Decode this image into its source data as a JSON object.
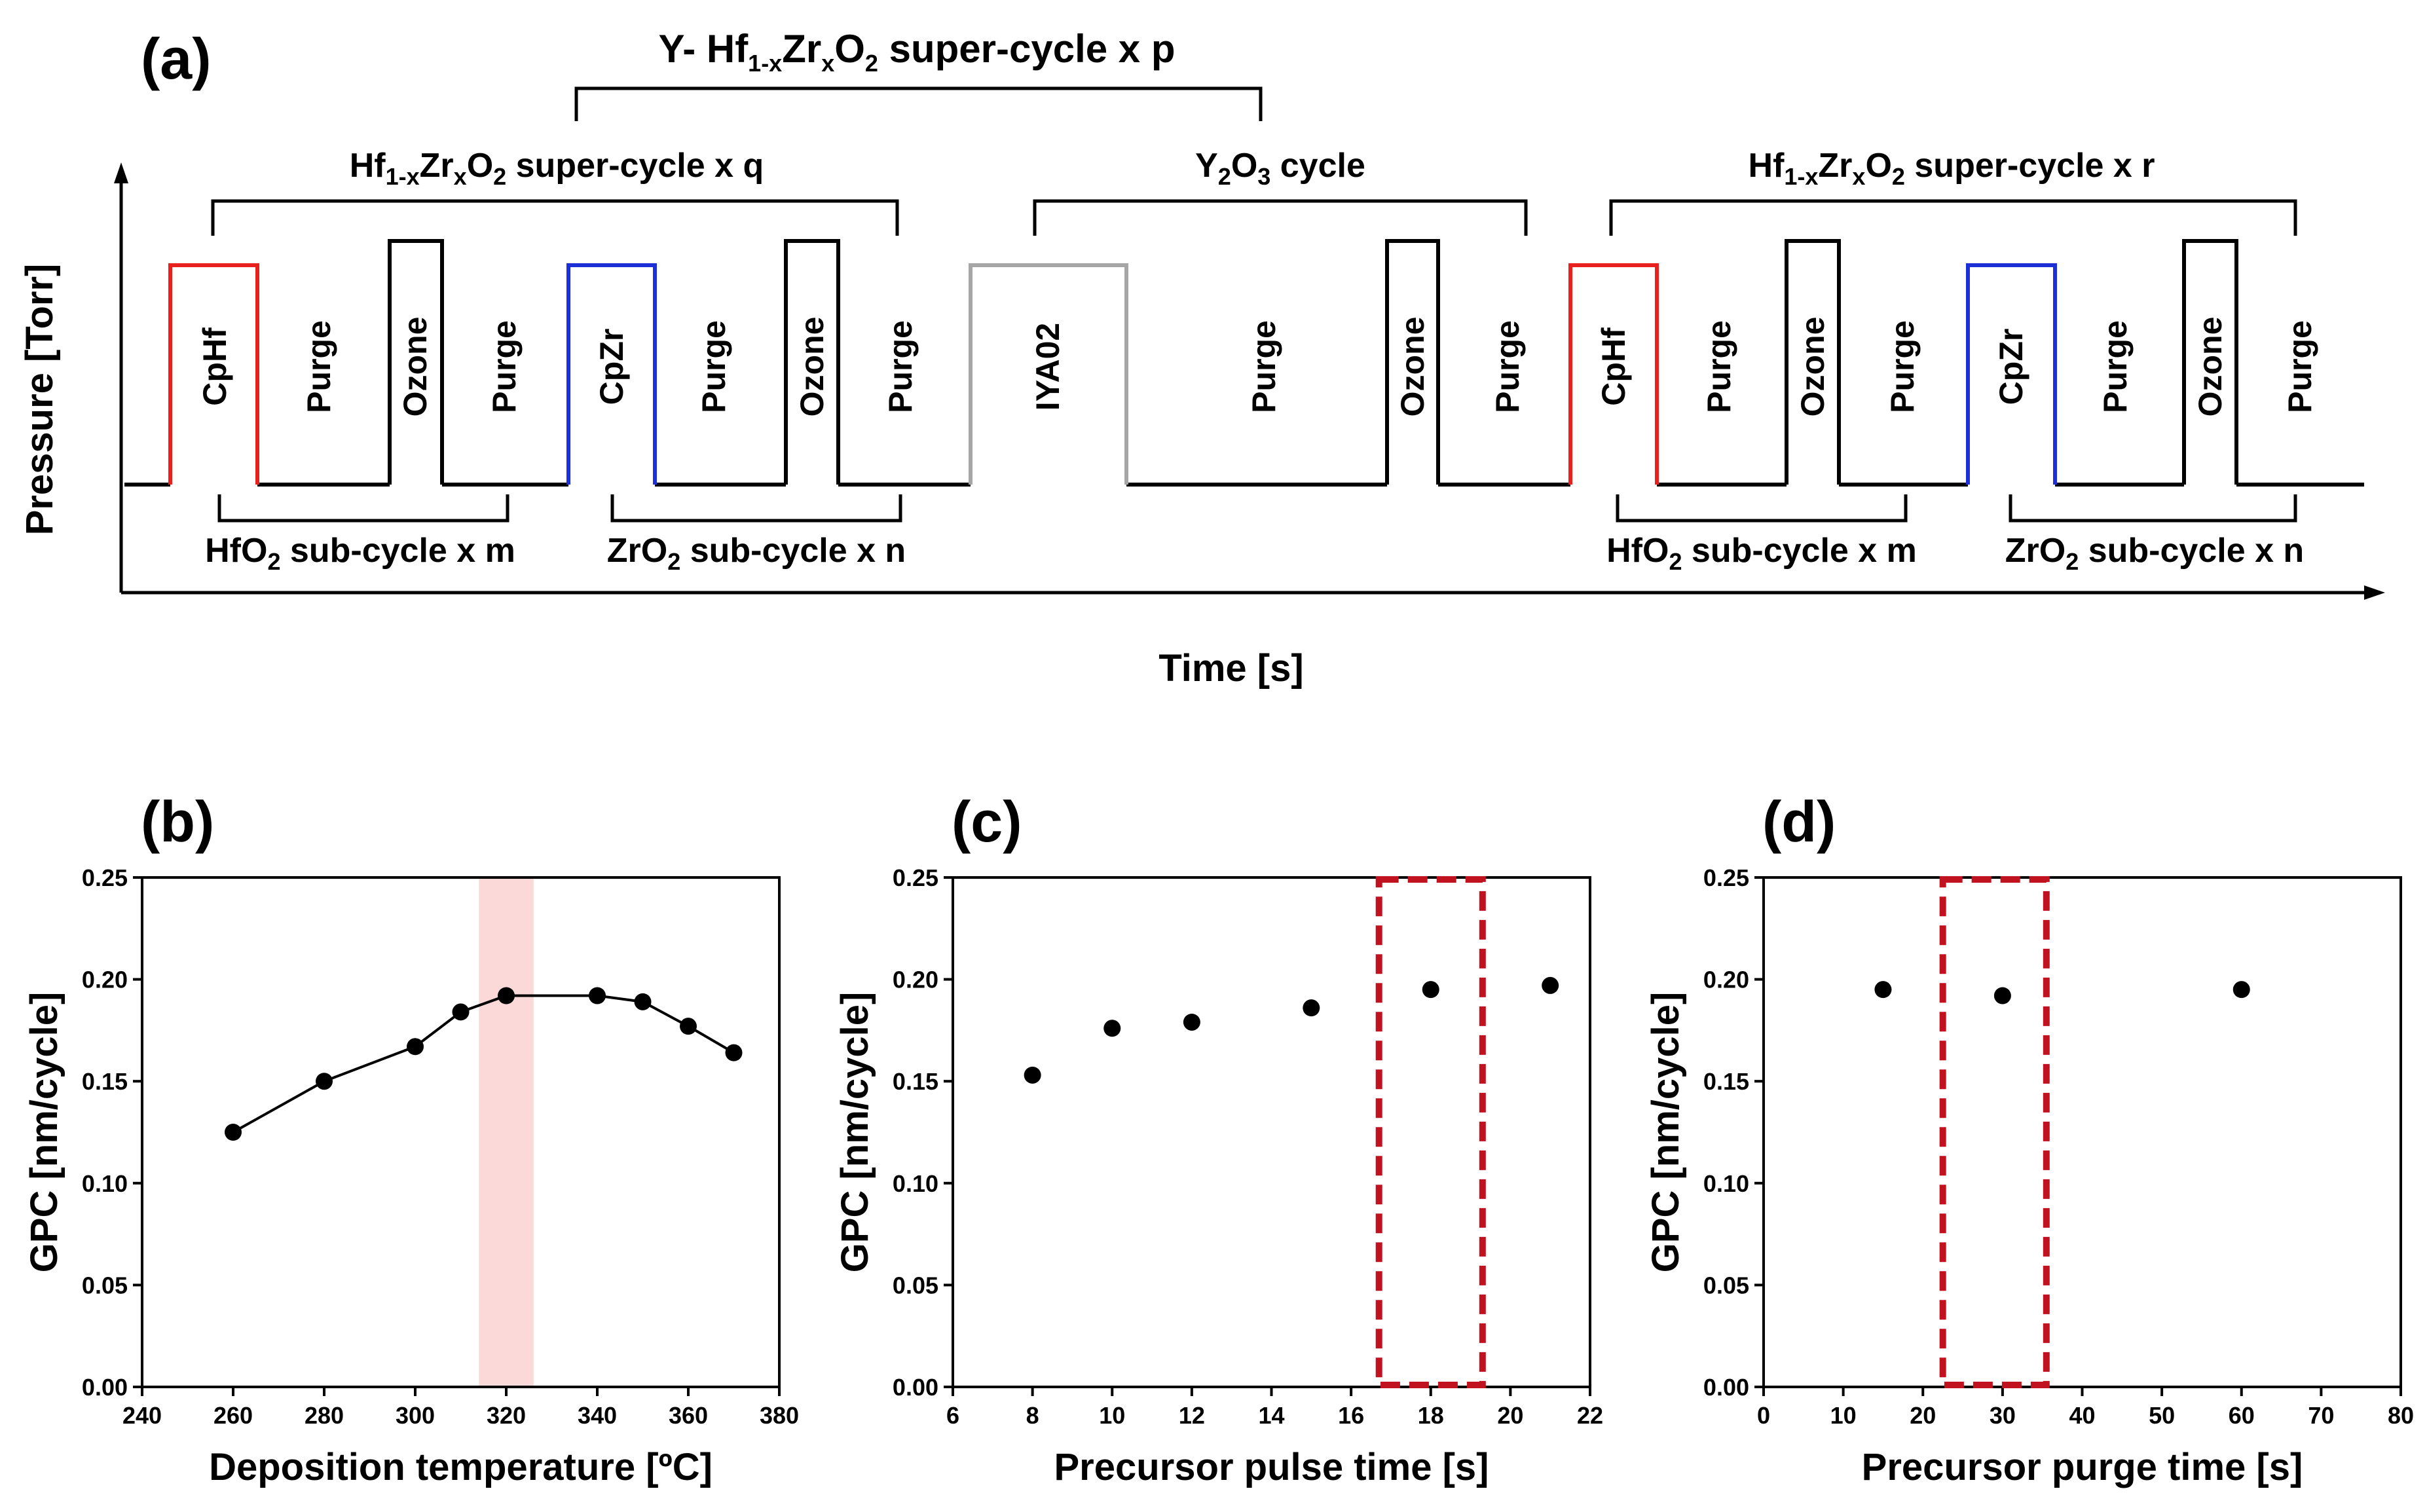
{
  "panel_a": {
    "label": "(a)",
    "xlabel": "Time [s]",
    "ylabel": "Pressure [Torr]",
    "top_bracket": {
      "prefix": "Y- Hf",
      "sub1": "1-x",
      "mid1": "Zr",
      "sub2": "x",
      "mid2": "O",
      "sub3": "2",
      "suffix": " super-cycle x p"
    },
    "brackets_above": [
      {
        "prefix": "Hf",
        "sub1": "1-x",
        "mid1": "Zr",
        "sub2": "x",
        "mid2": "O",
        "sub3": "2",
        "suffix": " super-cycle x q"
      },
      {
        "prefix": "Y",
        "sub1": "2",
        "mid1": "O",
        "sub2": "3",
        "mid2": " cycle",
        "sub3": "",
        "suffix": ""
      },
      {
        "prefix": "Hf",
        "sub1": "1-x",
        "mid1": "Zr",
        "sub2": "x",
        "mid2": "O",
        "sub3": "2",
        "suffix": " super-cycle x r"
      }
    ],
    "brackets_below": [
      {
        "prefix": "HfO",
        "sub": "2",
        "suffix": " sub-cycle x m"
      },
      {
        "prefix": "ZrO",
        "sub": "2",
        "suffix": " sub-cycle x n"
      },
      {
        "prefix": "HfO",
        "sub": "2",
        "suffix": " sub-cycle x m"
      },
      {
        "prefix": "ZrO",
        "sub": "2",
        "suffix": " sub-cycle x n"
      }
    ],
    "pulse_labels": [
      "CpHf",
      "Purge",
      "Ozone",
      "Purge",
      "CpZr",
      "Purge",
      "Ozone",
      "Purge",
      "IYA02",
      "Purge",
      "Ozone",
      "Purge",
      "CpHf",
      "Purge",
      "Ozone",
      "Purge",
      "CpZr",
      "Purge",
      "Ozone",
      "Purge"
    ],
    "pulse_colors": {
      "CpHf": "#e8211f",
      "CpZr": "#1d2fd6",
      "IYA02": "#a6a6a6",
      "Ozone": "#000000"
    }
  },
  "chart_data": [
    {
      "panel": "(b)",
      "type": "line",
      "xlabel": "Deposition temperature [ºC]",
      "ylabel": "GPC [nm/cycle]",
      "xlim": [
        240,
        380
      ],
      "ylim": [
        0.0,
        0.25
      ],
      "xticks": [
        "240",
        "260",
        "280",
        "300",
        "320",
        "340",
        "360",
        "380"
      ],
      "yticks": [
        "0.00",
        "0.05",
        "0.10",
        "0.15",
        "0.20",
        "0.25"
      ],
      "x": [
        260,
        280,
        300,
        310,
        320,
        340,
        350,
        360,
        370
      ],
      "y": [
        0.125,
        0.15,
        0.167,
        0.184,
        0.192,
        0.192,
        0.189,
        0.177,
        0.164
      ],
      "highlight_x_range": [
        314,
        326
      ],
      "highlight_color": "#fcd9d9"
    },
    {
      "panel": "(c)",
      "type": "scatter",
      "xlabel": "Precursor pulse time [s]",
      "ylabel": "GPC [nm/cycle]",
      "xlim": [
        6,
        22
      ],
      "ylim": [
        0.0,
        0.25
      ],
      "xticks": [
        "6",
        "8",
        "10",
        "12",
        "14",
        "16",
        "18",
        "20",
        "22"
      ],
      "yticks": [
        "0.00",
        "0.05",
        "0.10",
        "0.15",
        "0.20",
        "0.25"
      ],
      "x": [
        8,
        10,
        12,
        15,
        18,
        21
      ],
      "y": [
        0.153,
        0.176,
        0.179,
        0.186,
        0.195,
        0.197
      ],
      "highlight_box_x": [
        16.7,
        19.3
      ],
      "highlight_color": "#c0121f"
    },
    {
      "panel": "(d)",
      "type": "scatter",
      "xlabel": "Precursor purge time [s]",
      "ylabel": "GPC [nm/cycle]",
      "xlim": [
        0,
        80
      ],
      "ylim": [
        0.0,
        0.25
      ],
      "xticks": [
        "0",
        "10",
        "20",
        "30",
        "40",
        "50",
        "60",
        "70",
        "80"
      ],
      "yticks": [
        "0.00",
        "0.05",
        "0.10",
        "0.15",
        "0.20",
        "0.25"
      ],
      "x": [
        15,
        30,
        60
      ],
      "y": [
        0.195,
        0.192,
        0.195
      ],
      "highlight_box_x": [
        22.5,
        35.5
      ],
      "highlight_color": "#c0121f"
    }
  ]
}
